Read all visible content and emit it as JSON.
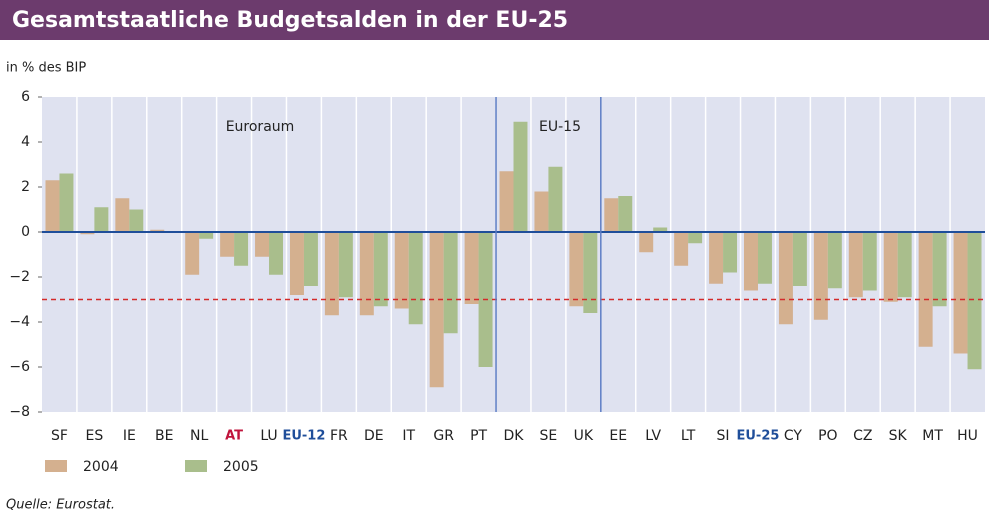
{
  "chart_data": {
    "type": "bar",
    "title": "Gesamtstaatliche Budgetsalden in der EU-25",
    "subtitle": "in % des BIP",
    "source": "Quelle: Eurostat.",
    "categories": [
      "SF",
      "ES",
      "IE",
      "BE",
      "NL",
      "AT",
      "LU",
      "EU-12",
      "FR",
      "DE",
      "IT",
      "GR",
      "PT",
      "DK",
      "SE",
      "UK",
      "EE",
      "LV",
      "LT",
      "SI",
      "EU-25",
      "CY",
      "PO",
      "CZ",
      "SK",
      "MT",
      "HU"
    ],
    "category_colors": [
      "#222222",
      "#222222",
      "#222222",
      "#222222",
      "#222222",
      "#c0143c",
      "#222222",
      "#1f4e9a",
      "#222222",
      "#222222",
      "#222222",
      "#222222",
      "#222222",
      "#222222",
      "#222222",
      "#222222",
      "#222222",
      "#222222",
      "#222222",
      "#222222",
      "#1f4e9a",
      "#222222",
      "#222222",
      "#222222",
      "#222222",
      "#222222",
      "#222222"
    ],
    "series": [
      {
        "name": "2004",
        "color": "#d4b08f",
        "values": [
          2.3,
          -0.1,
          1.5,
          0.1,
          -1.9,
          -1.1,
          -1.1,
          -2.8,
          -3.7,
          -3.7,
          -3.4,
          -6.9,
          -3.2,
          2.7,
          1.8,
          -3.3,
          1.5,
          -0.9,
          -1.5,
          -2.3,
          -2.6,
          -4.1,
          -3.9,
          -2.9,
          -3.1,
          -5.1,
          -5.4
        ]
      },
      {
        "name": "2005",
        "color": "#a9be8c",
        "values": [
          2.6,
          1.1,
          1.0,
          0.0,
          -0.3,
          -1.5,
          -1.9,
          -2.4,
          -2.9,
          -3.3,
          -4.1,
          -4.5,
          -6.0,
          4.9,
          2.9,
          -3.6,
          1.6,
          0.2,
          -0.5,
          -1.8,
          -2.3,
          -2.4,
          -2.5,
          -2.6,
          -2.9,
          -3.3,
          -6.1
        ]
      }
    ],
    "ylim": [
      -8,
      6
    ],
    "yticks": [
      {
        "value": -8,
        "label": "−8"
      },
      {
        "value": -6,
        "label": "−6"
      },
      {
        "value": -4,
        "label": "−4"
      },
      {
        "value": -2,
        "label": "−2"
      },
      0,
      2,
      4,
      6
    ],
    "reference_line": -3,
    "separators_after": [
      "PT",
      "UK"
    ],
    "annotations": [
      "Euroraum",
      "EU-15"
    ]
  }
}
